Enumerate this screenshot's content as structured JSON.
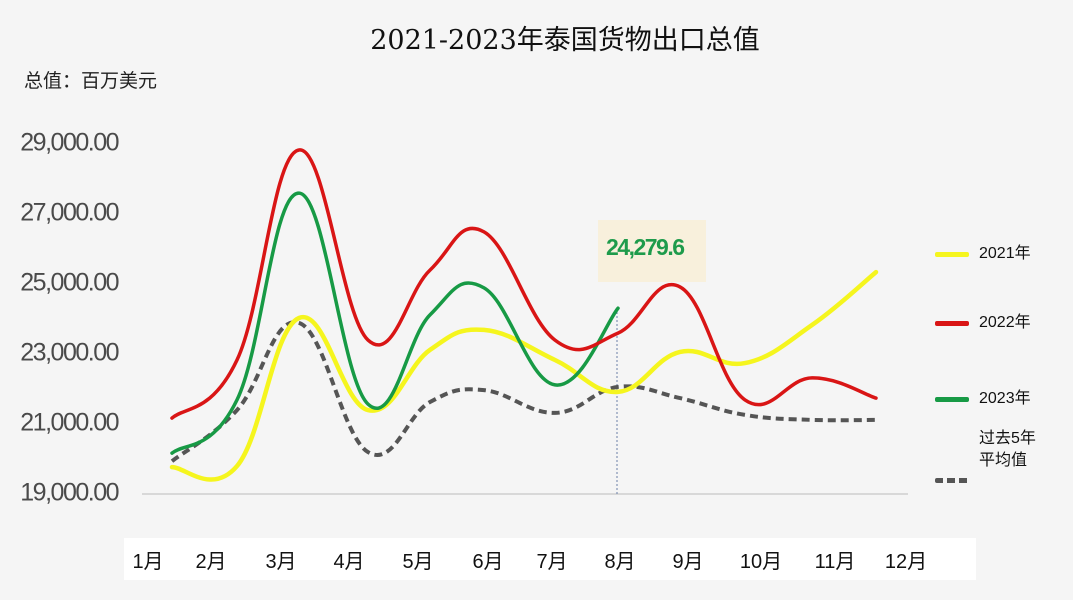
{
  "title": "2021-2023年泰国货物出口总值",
  "unit_label": "总值：百万美元",
  "annotation": {
    "label": "24,279.6",
    "month": "8月",
    "series": "2023年"
  },
  "legend": [
    {
      "name": "2021年",
      "color": "#f5f51e",
      "style": "solid"
    },
    {
      "name": "2022年",
      "color": "#d91515",
      "style": "solid"
    },
    {
      "name": "2023年",
      "color": "#179a45",
      "style": "solid"
    },
    {
      "name": "过去5年平均值",
      "line1": "过去5年",
      "line2": "平均值",
      "color": "#555555",
      "style": "dashed"
    }
  ],
  "y_ticks": [
    "29,000.00",
    "27,000.00",
    "25,000.00",
    "23,000.00",
    "21,000.00",
    "19,000.00"
  ],
  "x_ticks": [
    "1月",
    "2月",
    "3月",
    "4月",
    "5月",
    "6月",
    "7月",
    "8月",
    "9月",
    "10月",
    "11月",
    "12月"
  ],
  "chart_data": {
    "type": "line",
    "title": "2021-2023年泰国货物出口总值",
    "ylabel": "总值：百万美元",
    "xlabel": "",
    "categories": [
      "1月",
      "2月",
      "3月",
      "4月",
      "5月",
      "6月",
      "7月",
      "8月",
      "9月",
      "10月",
      "11月",
      "12月"
    ],
    "ylim": [
      19000,
      29000
    ],
    "yticks": [
      19000,
      21000,
      23000,
      25000,
      27000,
      29000
    ],
    "grid": false,
    "legend_position": "right",
    "smooth": true,
    "series": [
      {
        "name": "2021年",
        "color": "#f5f51e",
        "style": "solid",
        "values": [
          19740,
          19770,
          24000,
          21370,
          23090,
          23660,
          22800,
          21890,
          23030,
          22710,
          23800,
          25310
        ]
      },
      {
        "name": "2022年",
        "color": "#d91515",
        "style": "solid",
        "values": [
          21140,
          22800,
          28800,
          23370,
          25370,
          26460,
          23370,
          23570,
          24890,
          21660,
          22290,
          21710
        ]
      },
      {
        "name": "2023年",
        "color": "#179a45",
        "style": "solid",
        "values": [
          20140,
          21660,
          27570,
          21540,
          24090,
          24860,
          22090,
          24279.6,
          null,
          null,
          null,
          null
        ]
      },
      {
        "name": "过去5年平均值",
        "color": "#555555",
        "style": "dashed",
        "values": [
          19910,
          21370,
          23860,
          20170,
          21600,
          21940,
          21290,
          22030,
          21710,
          21230,
          21090,
          21090
        ]
      }
    ],
    "annotations": [
      {
        "x": "8月",
        "series": "2023年",
        "value": 24279.6,
        "text": "24,279.6"
      }
    ]
  }
}
